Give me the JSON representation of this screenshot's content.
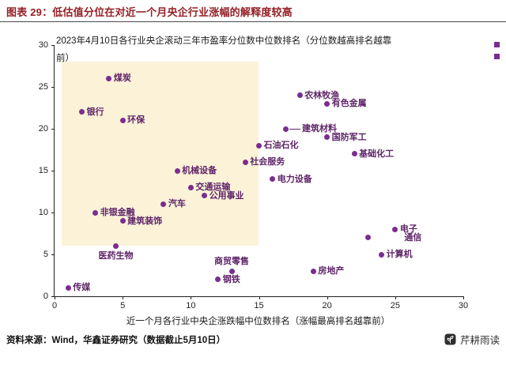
{
  "header": {
    "title": "图表 29：低估值分位在对近一个月央企行业涨幅的解释度较高"
  },
  "footer": {
    "source": "资料来源：Wind，华鑫证券研究（数据截止5月10日）",
    "brand": "芹耕雨读"
  },
  "colors": {
    "accent_red": "#942025",
    "point_purple": "#7B2D8E",
    "label_purple": "#5E2468",
    "highlight_cream": "#FBF2D8",
    "axis_black": "#1f1f1f"
  },
  "chart_data": {
    "type": "scatter",
    "annotation": "2023年4月10日各行业央企滚动三年市盈率分位数中位数排名（分位数越高排名越靠\n前）",
    "xlabel": "近一个月各行业中央企涨跌幅中位数排名（涨幅最高排名越靠前）",
    "ylabel": "",
    "xlim": [
      0,
      30
    ],
    "ylim": [
      0,
      30
    ],
    "xticks": [
      0,
      5,
      10,
      15,
      20,
      25,
      30
    ],
    "yticks": [
      0,
      5,
      10,
      15,
      20,
      25,
      30
    ],
    "grid": false,
    "legend": "none",
    "highlight_region": {
      "x0": 0.5,
      "x1": 15,
      "y0": 6,
      "y1": 28,
      "color": "#FBF2D8"
    },
    "point_color": "#7B2D8E",
    "label_color": "#5E2468",
    "points": [
      {
        "label": "煤炭",
        "x": 4,
        "y": 26,
        "label_pos": "right"
      },
      {
        "label": "银行",
        "x": 2,
        "y": 22,
        "label_pos": "right"
      },
      {
        "label": "环保",
        "x": 5,
        "y": 21,
        "label_pos": "right"
      },
      {
        "label": "农林牧渔",
        "x": 18,
        "y": 24,
        "label_pos": "right"
      },
      {
        "label": "有色金属",
        "x": 20,
        "y": 23,
        "label_pos": "right"
      },
      {
        "label": "建筑材料",
        "x": 17,
        "y": 20,
        "label_pos": "right",
        "connector": 14
      },
      {
        "label": "国防军工",
        "x": 20,
        "y": 19,
        "label_pos": "right"
      },
      {
        "label": "石油石化",
        "x": 15,
        "y": 18,
        "label_pos": "right"
      },
      {
        "label": "基础化工",
        "x": 22,
        "y": 17,
        "label_pos": "right"
      },
      {
        "label": "社会服务",
        "x": 14,
        "y": 16,
        "label_pos": "right"
      },
      {
        "label": "机械设备",
        "x": 9,
        "y": 15,
        "label_pos": "right"
      },
      {
        "label": "电力设备",
        "x": 16,
        "y": 14,
        "label_pos": "right"
      },
      {
        "label": "交通运输",
        "x": 10,
        "y": 13,
        "label_pos": "right"
      },
      {
        "label": "公用事业",
        "x": 11,
        "y": 12,
        "label_pos": "right"
      },
      {
        "label": "汽车",
        "x": 8,
        "y": 11,
        "label_pos": "right"
      },
      {
        "label": "非银金融",
        "x": 3,
        "y": 10,
        "label_pos": "right"
      },
      {
        "label": "建筑装饰",
        "x": 5,
        "y": 9,
        "label_pos": "right"
      },
      {
        "label": "医药生物",
        "x": 4.5,
        "y": 6,
        "label_pos": "below"
      },
      {
        "label": "电子",
        "x": 25,
        "y": 8,
        "label_pos": "right"
      },
      {
        "label": "通信",
        "x": 23,
        "y": 7,
        "label_pos": "right",
        "label_gap": 40
      },
      {
        "label": "计算机",
        "x": 24,
        "y": 5,
        "label_pos": "right"
      },
      {
        "label": "商贸零售",
        "x": 13,
        "y": 3,
        "label_pos": "above"
      },
      {
        "label": "房地产",
        "x": 19,
        "y": 3,
        "label_pos": "right"
      },
      {
        "label": "钢铁",
        "x": 12,
        "y": 2,
        "label_pos": "right"
      },
      {
        "label": "传媒",
        "x": 1,
        "y": 1,
        "label_pos": "right"
      }
    ]
  }
}
